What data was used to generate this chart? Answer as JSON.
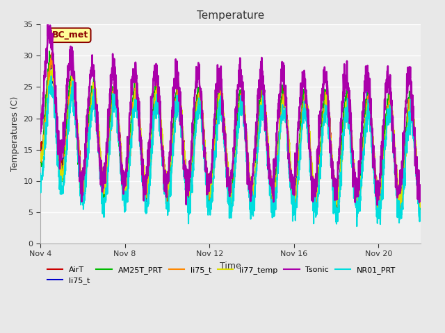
{
  "title": "Temperature",
  "xlabel": "Time",
  "ylabel": "Temperatures (C)",
  "ylim": [
    0,
    35
  ],
  "xlim_days": [
    4,
    22
  ],
  "bg_color": "#e8e8e8",
  "plot_bg_color": "#f0f0f0",
  "annotation_text": "BC_met",
  "annotation_bg": "#ffff99",
  "annotation_border": "#8B0000",
  "x_ticks_labels": [
    "Nov 4",
    "Nov 8",
    "Nov 12",
    "Nov 16",
    "Nov 20"
  ],
  "x_ticks_days": [
    4,
    8,
    12,
    16,
    20
  ],
  "y_ticks": [
    0,
    5,
    10,
    15,
    20,
    25,
    30,
    35
  ],
  "series": {
    "AirT": {
      "color": "#cc0000",
      "lw": 1.0
    },
    "li75_t_b": {
      "color": "#0000cc",
      "lw": 1.2
    },
    "AM25T_PRT": {
      "color": "#00bb00",
      "lw": 1.2
    },
    "li75_t": {
      "color": "#ff8800",
      "lw": 1.2
    },
    "li77_temp": {
      "color": "#dddd00",
      "lw": 1.2
    },
    "Tsonic": {
      "color": "#aa00aa",
      "lw": 1.8
    },
    "NR01_PRT": {
      "color": "#00dddd",
      "lw": 1.5
    }
  },
  "legend_entries": [
    {
      "label": "AirT",
      "color": "#cc0000"
    },
    {
      "label": "li75_t",
      "color": "#0000cc"
    },
    {
      "label": "AM25T_PRT",
      "color": "#00bb00"
    },
    {
      "label": "li75_t",
      "color": "#ff8800"
    },
    {
      "label": "li77_temp",
      "color": "#dddd00"
    },
    {
      "label": "Tsonic",
      "color": "#aa00aa"
    },
    {
      "label": "NR01_PRT",
      "color": "#00dddd"
    }
  ]
}
